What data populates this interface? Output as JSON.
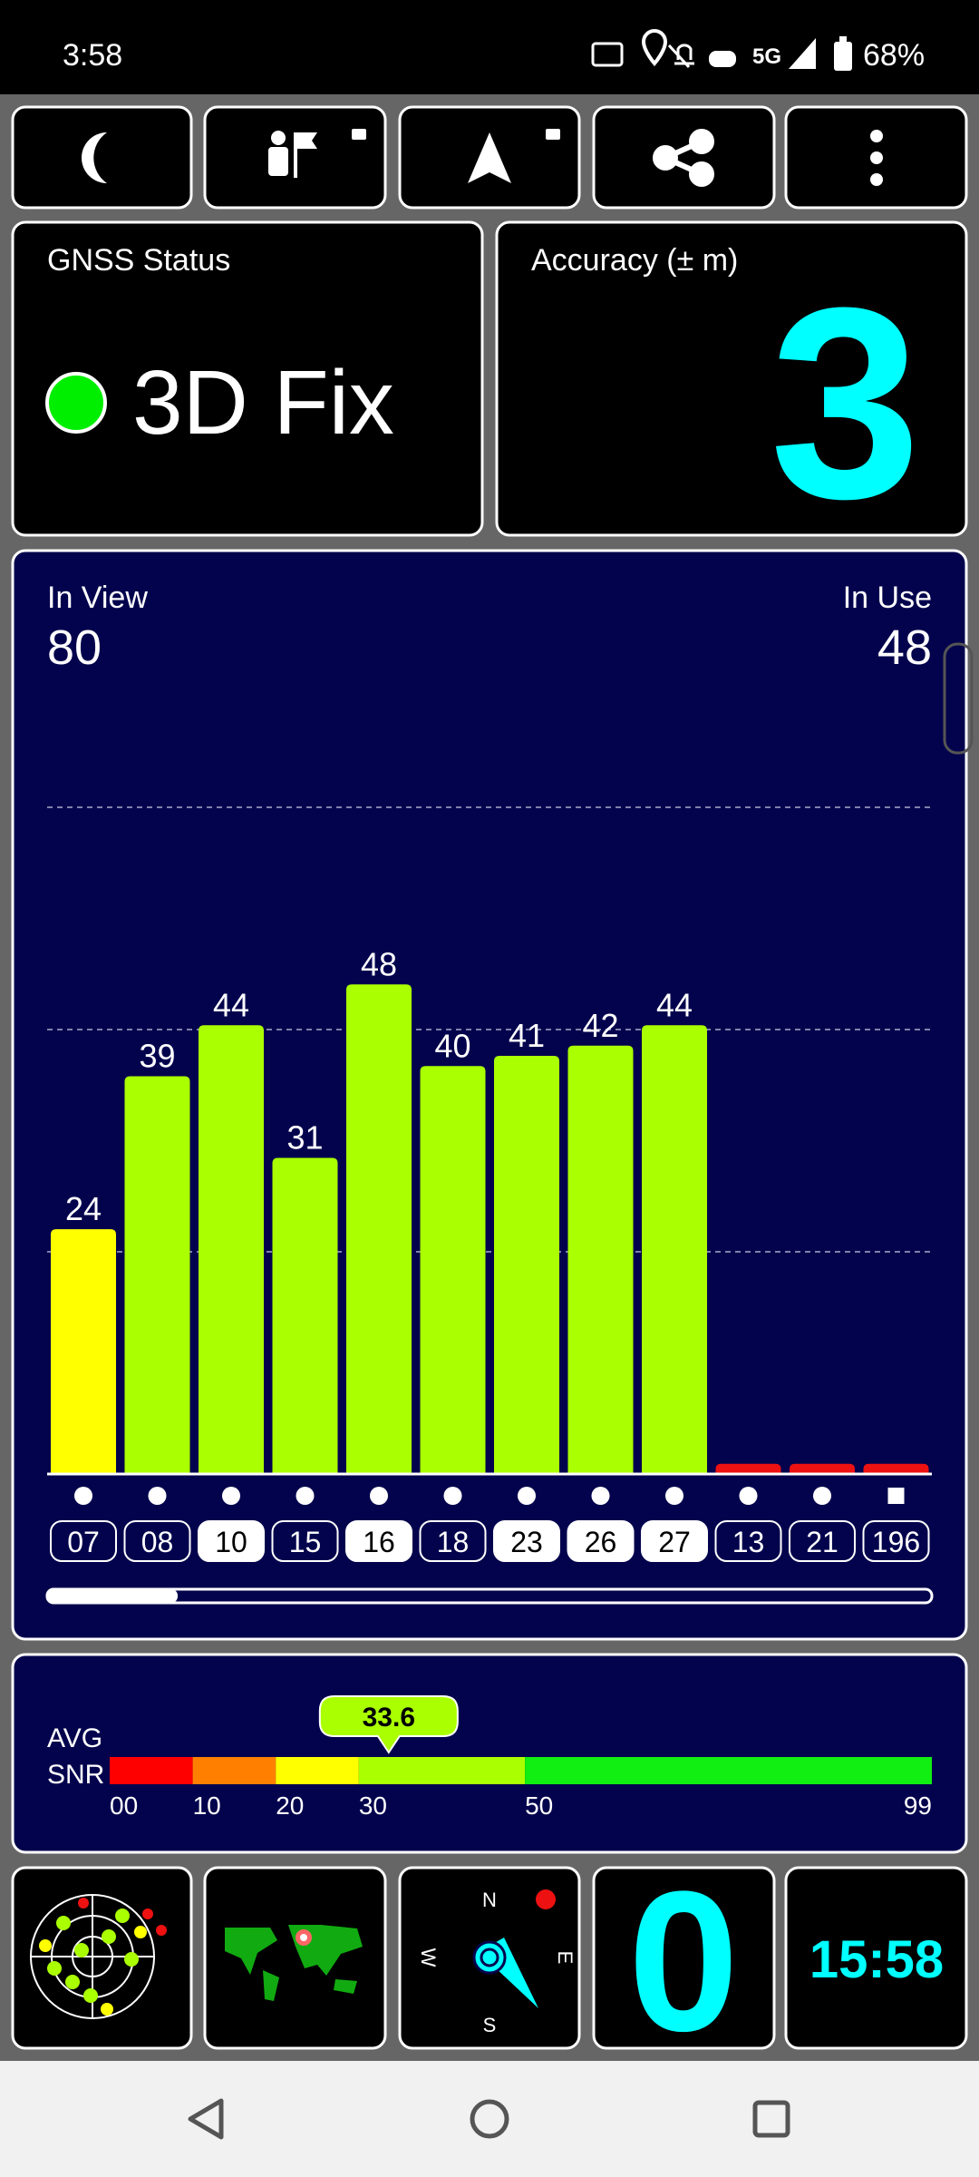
{
  "status_bar": {
    "time": "3:58",
    "network": "5G",
    "battery": "68%"
  },
  "gnss_status": {
    "title": "GNSS Status",
    "fix": "3D Fix"
  },
  "accuracy": {
    "title": "Accuracy (± m)",
    "value": 3
  },
  "chart_data": {
    "type": "bar",
    "in_view_label": "In View",
    "in_view": 80,
    "in_use_label": "In Use",
    "in_use": 48,
    "categories": [
      "07",
      "08",
      "10",
      "15",
      "16",
      "18",
      "23",
      "26",
      "27",
      "13",
      "21",
      "196"
    ],
    "values": [
      24,
      39,
      44,
      31,
      48,
      40,
      41,
      42,
      44,
      1,
      1,
      1
    ],
    "colors": [
      "#ffff00",
      "#aaff00",
      "#aaff00",
      "#aaff00",
      "#aaff00",
      "#aaff00",
      "#aaff00",
      "#aaff00",
      "#aaff00",
      "#ee1111",
      "#ee1111",
      "#ee1111"
    ],
    "show_label": [
      true,
      true,
      true,
      true,
      true,
      true,
      true,
      true,
      true,
      false,
      false,
      false
    ],
    "used": [
      false,
      false,
      true,
      false,
      true,
      false,
      true,
      true,
      true,
      false,
      false,
      false
    ],
    "markers": [
      "circle",
      "circle",
      "circle",
      "circle",
      "circle",
      "circle",
      "circle",
      "circle",
      "circle",
      "circle",
      "circle",
      "square"
    ]
  },
  "snr": {
    "type": "scale",
    "label_1": "AVG",
    "label_2": "SNR",
    "value": 33.6,
    "xlim": [
      0,
      99
    ],
    "xticks": [
      {
        "value": 0,
        "label": "00"
      },
      10,
      20,
      30,
      50,
      99
    ],
    "colors": [
      "#ff0000",
      "#ff8000",
      "#ffff00",
      "#aaff00",
      "#11ee11"
    ]
  },
  "compass": {
    "north": "N",
    "south": "S",
    "west": "W",
    "east": "E"
  },
  "bottom_tiles": {
    "count": 0,
    "clock": "15:58"
  }
}
